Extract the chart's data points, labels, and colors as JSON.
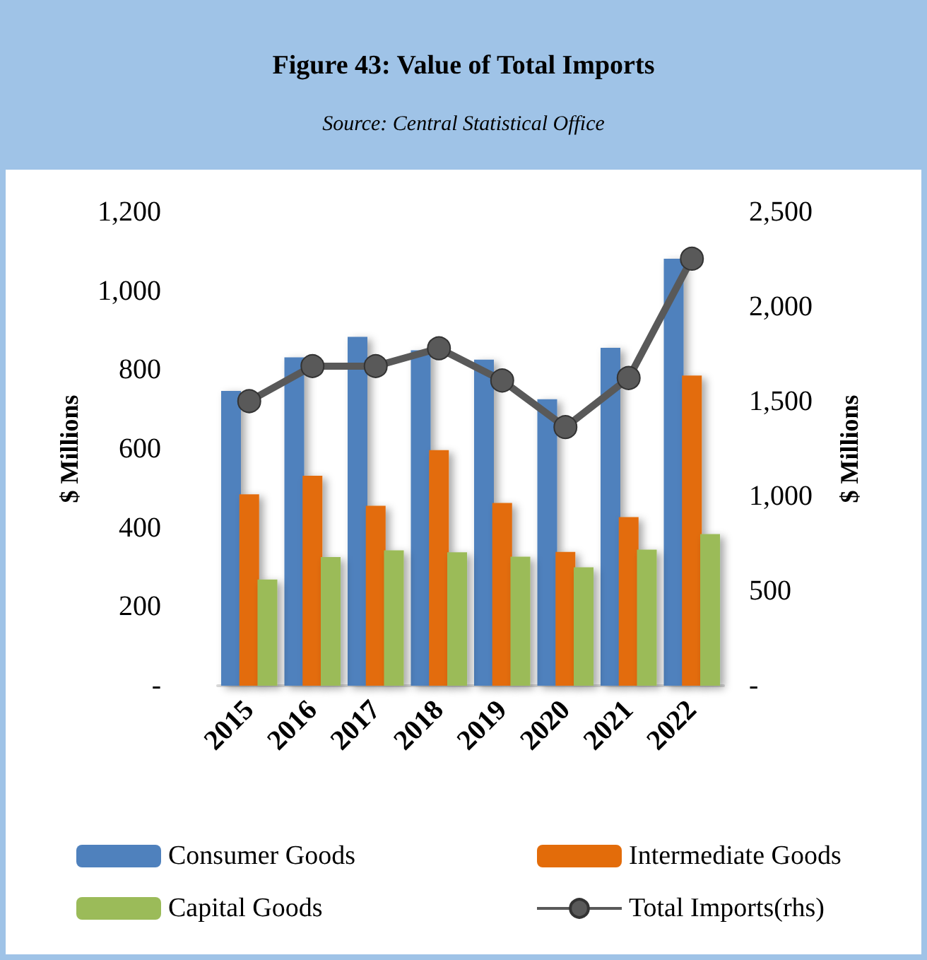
{
  "chart_data": {
    "type": "bar",
    "title": "Figure 43: Value of Total Imports",
    "subtitle": "Source: Central Statistical Office",
    "ylabel": "$ Millions",
    "y2label": "$ Millions",
    "categories": [
      "2015",
      "2016",
      "2017",
      "2018",
      "2019",
      "2020",
      "2021",
      "2022"
    ],
    "series": [
      {
        "name": "Consumer Goods",
        "color": "#4f81bd",
        "values": [
          747,
          832,
          884,
          850,
          826,
          726,
          856,
          1082
        ]
      },
      {
        "name": "Intermediate Goods",
        "color": "#e36c0a",
        "values": [
          485,
          532,
          456,
          597,
          463,
          339,
          427,
          786
        ]
      },
      {
        "name": "Capital Goods",
        "color": "#9bbb59",
        "values": [
          269,
          326,
          343,
          338,
          327,
          300,
          345,
          384
        ]
      },
      {
        "name": "Total Imports(rhs)",
        "type": "line",
        "axis": "y2",
        "color": "#595959",
        "values": [
          1502,
          1687,
          1687,
          1781,
          1611,
          1365,
          1624,
          2254
        ]
      }
    ],
    "ylim": [
      0,
      1200
    ],
    "yticks": [
      {
        "value": 0,
        "label": "-"
      },
      200,
      400,
      600,
      800,
      {
        "value": 1000,
        "label": "1,000"
      },
      {
        "value": 1200,
        "label": "1,200"
      }
    ],
    "y2lim": [
      0,
      2500
    ],
    "y2ticks": [
      {
        "value": 0,
        "label": "-"
      },
      500,
      {
        "value": 1000,
        "label": "1,000"
      },
      {
        "value": 1500,
        "label": "1,500"
      },
      {
        "value": 2000,
        "label": "2,000"
      },
      {
        "value": 2500,
        "label": "2,500"
      }
    ],
    "marker": "circle",
    "legend": "bottom"
  }
}
